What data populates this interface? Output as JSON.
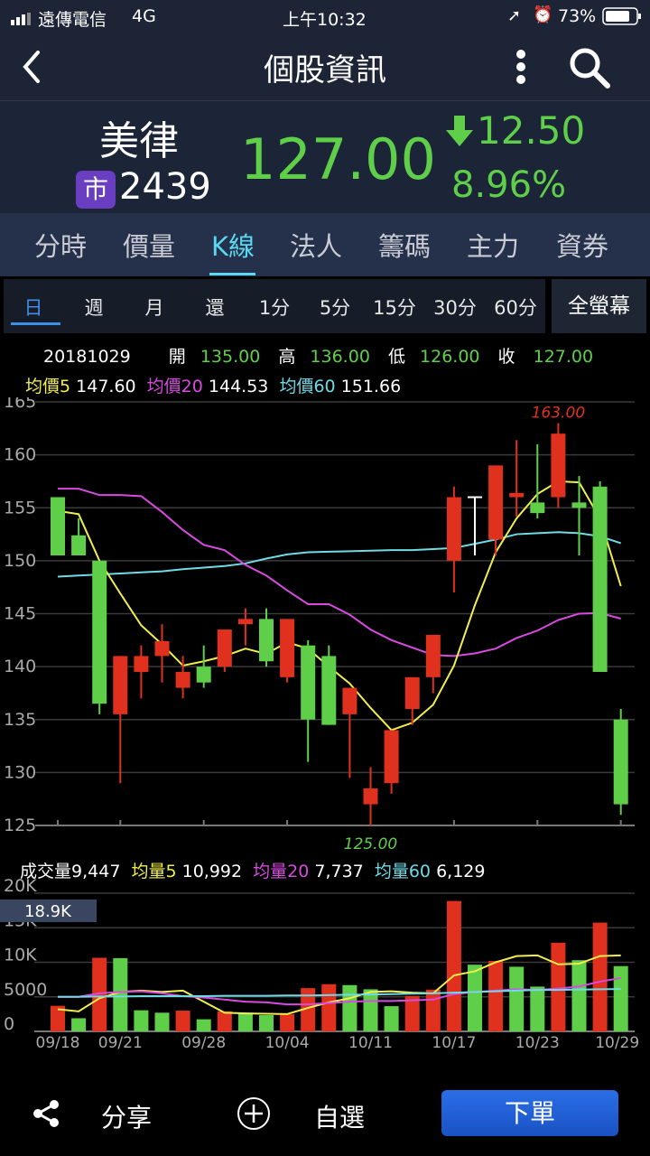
{
  "status_bar": {
    "carrier": "遠傳電信",
    "network": "4G",
    "time": "上午10:32",
    "battery": "73%"
  },
  "nav": {
    "title": "個股資訊",
    "back_icon": "chevron-left-icon",
    "more_icon": "more-vertical-icon",
    "search_icon": "search-icon"
  },
  "quote": {
    "name": "美律",
    "market_badge": "市",
    "code": "2439",
    "price": "127.00",
    "change": "12.50",
    "change_pct": "8.96%",
    "direction": "down",
    "color": "#5fcf4a"
  },
  "tabs": [
    {
      "label": "分時"
    },
    {
      "label": "價量"
    },
    {
      "label": "K線",
      "active": true
    },
    {
      "label": "法人"
    },
    {
      "label": "籌碼"
    },
    {
      "label": "主力"
    },
    {
      "label": "資券"
    }
  ],
  "periods": [
    {
      "label": "日",
      "active": true
    },
    {
      "label": "週"
    },
    {
      "label": "月"
    },
    {
      "label": "還"
    },
    {
      "label": "1分"
    },
    {
      "label": "5分"
    },
    {
      "label": "15分"
    },
    {
      "label": "30分"
    },
    {
      "label": "60分"
    }
  ],
  "fullscreen_label": "全螢幕",
  "ohlc": {
    "date": "20181029",
    "open_label": "開",
    "open": "135.00",
    "high_label": "高",
    "high": "136.00",
    "low_label": "低",
    "low": "126.00",
    "close_label": "收",
    "close": "127.00"
  },
  "ma_legend": {
    "ma5_label": "均價5",
    "ma5": "147.60",
    "ma20_label": "均價20",
    "ma20": "144.53",
    "ma60_label": "均價60",
    "ma60": "151.66"
  },
  "vol_legend": {
    "vol_label": "成交量",
    "vol": "9,447",
    "ma5_label": "均量5",
    "ma5": "10,992",
    "ma20_label": "均量20",
    "ma20": "7,737",
    "ma60_label": "均量60",
    "ma60": "6,129"
  },
  "bottom_bar": {
    "share_label": "分享",
    "watchlist_label": "自選",
    "order_label": "下單"
  },
  "colors": {
    "up": "#e0301e",
    "down": "#5fcf4a",
    "ma5": "#f2ee4c",
    "ma20": "#d84ae0",
    "ma60": "#6fdbe6",
    "accent": "#5ad8f0",
    "order_button": "#1f5fd6"
  },
  "chart_data": [
    {
      "type": "candlestick",
      "ylim": [
        125,
        165
      ],
      "y_ticks": [
        "165",
        "160",
        "155",
        "150",
        "145",
        "140",
        "135",
        "130",
        "125"
      ],
      "max_label": "163.00",
      "min_label": "125.00",
      "x_labels": [
        "09/18",
        "",
        "",
        "09/21",
        "",
        "",
        "",
        "09/28",
        "",
        "",
        "",
        "10/04",
        "",
        "",
        "",
        "10/11",
        "",
        "",
        "",
        "10/17",
        "",
        "",
        "",
        "10/23",
        "",
        "",
        "",
        "10/29"
      ],
      "open": [
        156,
        152.4,
        150,
        135.5,
        139.5,
        141,
        138,
        140,
        140,
        144,
        144.5,
        139,
        142,
        141,
        135.5,
        127,
        129,
        136,
        139,
        150,
        156,
        152,
        156,
        155.5,
        156,
        155.5,
        157,
        135
      ],
      "high": [
        156,
        154,
        150,
        141,
        142,
        144,
        141,
        142,
        143.5,
        145.5,
        145.5,
        144.5,
        142.5,
        142,
        138,
        130.5,
        134,
        139,
        143,
        157,
        156,
        159,
        161.4,
        161,
        163,
        158,
        157.5,
        136
      ],
      "low": [
        150.5,
        150.5,
        135.5,
        129,
        137,
        138.5,
        137,
        138,
        139.5,
        142,
        140,
        138.5,
        131,
        134.5,
        129.5,
        125,
        128,
        134.5,
        137.5,
        147,
        150.5,
        150.5,
        154.2,
        154,
        155,
        150.5,
        139.5,
        126
      ],
      "close": [
        150.5,
        150.5,
        136.5,
        141,
        141,
        142.4,
        139.5,
        138.5,
        143.5,
        144.5,
        140.5,
        144.5,
        135,
        134.5,
        138,
        128.5,
        134,
        139,
        143,
        156,
        156,
        159,
        156.4,
        154.5,
        162,
        155,
        139.5,
        127
      ],
      "series": [
        {
          "name": "均價5",
          "values": [
            154.7,
            154.4,
            150,
            146.9,
            143.9,
            142.1,
            140.1,
            140.5,
            141,
            141.7,
            141.2,
            142.3,
            141.7,
            140,
            138.4,
            136.1,
            134,
            134.7,
            136.4,
            140.1,
            145.8,
            150.8,
            154,
            156.3,
            157.5,
            157.4,
            154,
            147.6
          ]
        },
        {
          "name": "均價20",
          "values": [
            156.8,
            156.8,
            156.2,
            156.2,
            156.1,
            154.6,
            152.9,
            151.5,
            151,
            149.6,
            148.6,
            147.2,
            145.9,
            145.9,
            144.9,
            143.5,
            142.5,
            141.8,
            141.1,
            141,
            141.25,
            141.7,
            142.7,
            143.4,
            144.4,
            145,
            145.06,
            144.53
          ]
        },
        {
          "name": "均價60",
          "values": [
            148.5,
            148.6,
            148.7,
            148.8,
            148.9,
            149,
            149.2,
            149.35,
            149.5,
            149.75,
            150.2,
            150.6,
            150.8,
            150.85,
            150.9,
            150.95,
            151,
            151,
            151.1,
            151.2,
            151.6,
            152,
            152.5,
            152.6,
            152.7,
            152.6,
            152.3,
            151.66
          ]
        }
      ]
    },
    {
      "type": "bar",
      "ylim": [
        0,
        20000
      ],
      "y_ticks": [
        "20K",
        "15K",
        "10K",
        "5000",
        "0"
      ],
      "max_label": "18.9K",
      "values": [
        3700,
        1900,
        10650,
        10600,
        3050,
        2700,
        3000,
        1750,
        2900,
        2700,
        2350,
        2480,
        6260,
        6830,
        6700,
        6090,
        3650,
        5130,
        6040,
        18870,
        9650,
        10200,
        9350,
        6480,
        12830,
        10300,
        15740,
        9447
      ],
      "up": [
        1,
        0,
        1,
        0,
        0,
        0,
        1,
        0,
        1,
        0,
        0,
        1,
        1,
        1,
        0,
        0,
        0,
        1,
        1,
        1,
        0,
        1,
        0,
        0,
        1,
        0,
        1,
        0
      ],
      "series": [
        {
          "name": "均量5",
          "values": [
            3200,
            2900,
            4800,
            5700,
            5900,
            5700,
            5900,
            4300,
            2700,
            2600,
            2550,
            2500,
            3400,
            4200,
            4800,
            5700,
            5800,
            5600,
            5500,
            8100,
            8700,
            10000,
            10900,
            11000,
            9700,
            9800,
            10900,
            10992
          ]
        },
        {
          "name": "均量20",
          "values": [
            5000,
            5000,
            5500,
            5700,
            5800,
            5500,
            5100,
            4900,
            4600,
            4300,
            4200,
            3900,
            3900,
            4100,
            4300,
            4400,
            4400,
            4500,
            4600,
            5400,
            5700,
            5900,
            6100,
            6000,
            6200,
            6500,
            7200,
            7737
          ]
        },
        {
          "name": "均量60",
          "values": [
            5000,
            5000,
            5050,
            5050,
            5100,
            5100,
            5100,
            5100,
            5150,
            5150,
            5150,
            5200,
            5200,
            5250,
            5300,
            5350,
            5400,
            5450,
            5500,
            5600,
            5700,
            5800,
            5900,
            6000,
            6000,
            6050,
            6100,
            6129
          ]
        }
      ]
    }
  ]
}
